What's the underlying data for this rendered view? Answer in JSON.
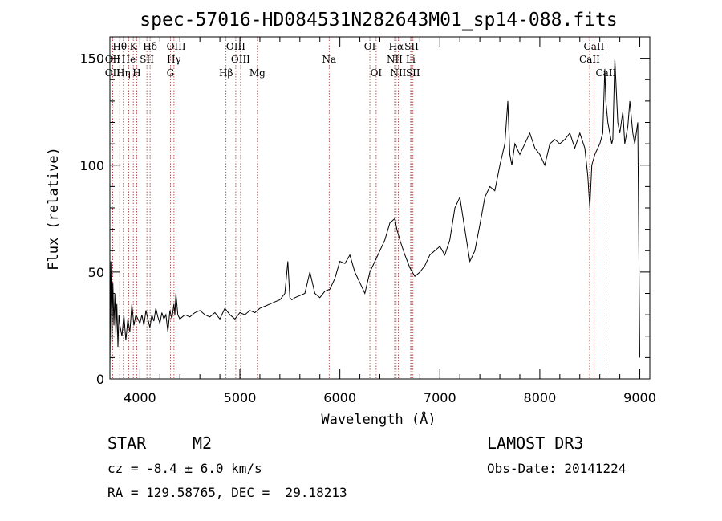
{
  "chart_data": {
    "type": "line",
    "title": "spec-57016-HD084531N282643M01_sp14-088.fits",
    "xlabel": "Wavelength (Å)",
    "ylabel": "Flux (relative)",
    "xlim": [
      3700,
      9100
    ],
    "ylim": [
      0,
      160
    ],
    "xticks": [
      4000,
      5000,
      6000,
      7000,
      8000,
      9000
    ],
    "yticks": [
      0,
      50,
      100,
      150
    ],
    "grid": false,
    "series": [
      {
        "x": [
          3700,
          3710,
          3720,
          3730,
          3740,
          3750,
          3760,
          3770,
          3780,
          3790,
          3800,
          3820,
          3840,
          3860,
          3880,
          3900,
          3920,
          3940,
          3960,
          3980,
          4000,
          4020,
          4040,
          4060,
          4080,
          4100,
          4120,
          4140,
          4160,
          4180,
          4200,
          4220,
          4240,
          4260,
          4280,
          4300,
          4320,
          4340,
          4350,
          4360,
          4380,
          4400,
          4450,
          4500,
          4550,
          4600,
          4650,
          4700,
          4750,
          4800,
          4850,
          4900,
          4950,
          5000,
          5050,
          5100,
          5150,
          5200,
          5250,
          5300,
          5350,
          5400,
          5450,
          5480,
          5500,
          5520,
          5550,
          5600,
          5650,
          5700,
          5750,
          5800,
          5850,
          5900,
          5950,
          6000,
          6050,
          6100,
          6150,
          6200,
          6250,
          6300,
          6350,
          6400,
          6450,
          6500,
          6550,
          6570,
          6600,
          6650,
          6700,
          6750,
          6800,
          6850,
          6900,
          6950,
          7000,
          7050,
          7100,
          7150,
          7200,
          7250,
          7300,
          7350,
          7400,
          7450,
          7500,
          7550,
          7600,
          7650,
          7680,
          7700,
          7720,
          7750,
          7800,
          7850,
          7900,
          7950,
          8000,
          8050,
          8100,
          8150,
          8200,
          8250,
          8300,
          8350,
          8400,
          8450,
          8480,
          8500,
          8520,
          8550,
          8600,
          8630,
          8650,
          8660,
          8680,
          8700,
          8720,
          8730,
          8750,
          8780,
          8800,
          8830,
          8850,
          8880,
          8900,
          8930,
          8950,
          8980,
          9000
        ],
        "y": [
          5,
          55,
          15,
          45,
          25,
          40,
          20,
          35,
          15,
          30,
          25,
          20,
          30,
          18,
          28,
          22,
          35,
          25,
          30,
          28,
          26,
          30,
          25,
          32,
          28,
          24,
          30,
          27,
          33,
          29,
          26,
          31,
          28,
          30,
          22,
          32,
          28,
          35,
          30,
          40,
          30,
          28,
          30,
          29,
          31,
          32,
          30,
          29,
          31,
          28,
          33,
          30,
          28,
          31,
          30,
          32,
          31,
          33,
          34,
          35,
          36,
          37,
          40,
          55,
          38,
          37,
          38,
          39,
          40,
          50,
          40,
          38,
          41,
          42,
          47,
          55,
          54,
          58,
          50,
          45,
          40,
          50,
          55,
          60,
          65,
          73,
          75,
          70,
          65,
          58,
          52,
          48,
          50,
          53,
          58,
          60,
          62,
          58,
          65,
          80,
          85,
          70,
          55,
          60,
          72,
          85,
          90,
          88,
          100,
          110,
          130,
          105,
          100,
          110,
          105,
          110,
          115,
          108,
          105,
          100,
          110,
          112,
          110,
          112,
          115,
          108,
          115,
          108,
          95,
          80,
          100,
          105,
          110,
          115,
          145,
          130,
          120,
          115,
          110,
          112,
          150,
          120,
          115,
          125,
          110,
          118,
          130,
          115,
          110,
          120,
          10
        ]
      }
    ],
    "annotations": [
      {
        "label": "Hθ",
        "x": 3798,
        "row": 1
      },
      {
        "label": "OII",
        "x": 3727,
        "row": 2
      },
      {
        "label": "OII",
        "x": 3727,
        "row": 3
      },
      {
        "label": "He",
        "x": 3888,
        "row": 2
      },
      {
        "label": "Hη",
        "x": 3835,
        "row": 3
      },
      {
        "label": "K",
        "x": 3934,
        "row": 1
      },
      {
        "label": "H",
        "x": 3969,
        "row": 3
      },
      {
        "label": "SII",
        "x": 4070,
        "row": 2
      },
      {
        "label": "Hδ",
        "x": 4102,
        "row": 1
      },
      {
        "label": "OIII",
        "x": 4363,
        "row": 1
      },
      {
        "label": "Hγ",
        "x": 4341,
        "row": 2
      },
      {
        "label": "G",
        "x": 4305,
        "row": 3
      },
      {
        "label": "Hβ",
        "x": 4861,
        "row": 3
      },
      {
        "label": "OIII",
        "x": 4959,
        "row": 1
      },
      {
        "label": "OIII",
        "x": 5007,
        "row": 2
      },
      {
        "label": "Mg",
        "x": 5175,
        "row": 3
      },
      {
        "label": "Na",
        "x": 5893,
        "row": 2
      },
      {
        "label": "OI",
        "x": 6300,
        "row": 1
      },
      {
        "label": "OI",
        "x": 6363,
        "row": 3
      },
      {
        "label": "Hα",
        "x": 6563,
        "row": 1
      },
      {
        "label": "NII",
        "x": 6548,
        "row": 2
      },
      {
        "label": "NII",
        "x": 6584,
        "row": 3
      },
      {
        "label": "SII",
        "x": 6717,
        "row": 1
      },
      {
        "label": "Li",
        "x": 6708,
        "row": 2
      },
      {
        "label": "SII",
        "x": 6731,
        "row": 3
      },
      {
        "label": "CaII",
        "x": 8542,
        "row": 1
      },
      {
        "label": "CaII",
        "x": 8498,
        "row": 2
      },
      {
        "label": "CaII",
        "x": 8662,
        "row": 3
      }
    ]
  },
  "info": {
    "object_type": "STAR",
    "subclass": "M2",
    "survey": "LAMOST DR3",
    "cz": "cz = -8.4 ± 6.0 km/s",
    "obs_date": "Obs-Date: 20141224",
    "coords": "RA = 129.58765, DEC =  29.18213"
  },
  "colors": {
    "line_marker": "#a03030",
    "spectrum": "#000000"
  }
}
